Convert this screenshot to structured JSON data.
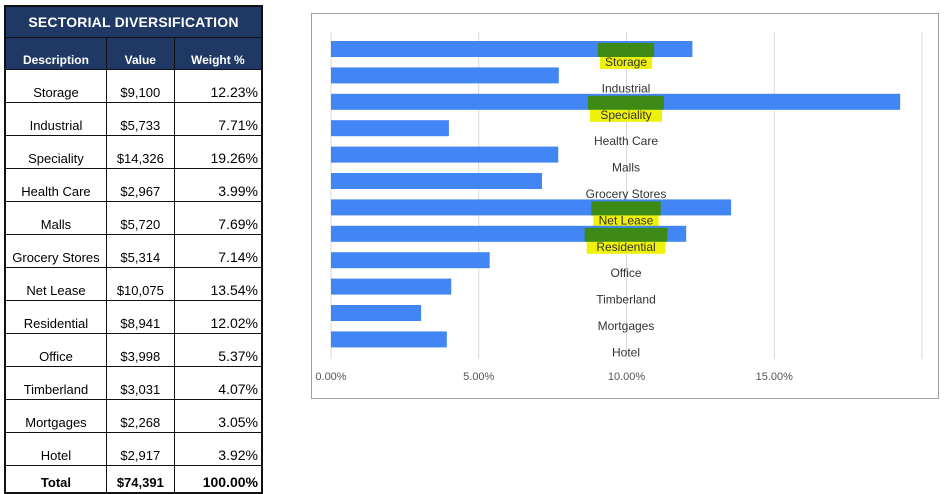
{
  "table": {
    "title": "SECTORIAL DIVERSIFICATION",
    "headers": [
      "Description",
      "Value",
      "Weight %"
    ],
    "rows": [
      {
        "desc": "Storage",
        "value": "$9,100",
        "weight": "12.23%"
      },
      {
        "desc": "Industrial",
        "value": "$5,733",
        "weight": "7.71%"
      },
      {
        "desc": "Speciality",
        "value": "$14,326",
        "weight": "19.26%"
      },
      {
        "desc": "Health Care",
        "value": "$2,967",
        "weight": "3.99%"
      },
      {
        "desc": "Malls",
        "value": "$5,720",
        "weight": "7.69%"
      },
      {
        "desc": "Grocery Stores",
        "value": "$5,314",
        "weight": "7.14%"
      },
      {
        "desc": "Net Lease",
        "value": "$10,075",
        "weight": "13.54%"
      },
      {
        "desc": "Residential",
        "value": "$8,941",
        "weight": "12.02%"
      },
      {
        "desc": "Office",
        "value": "$3,998",
        "weight": "5.37%"
      },
      {
        "desc": "Timberland",
        "value": "$3,031",
        "weight": "4.07%"
      },
      {
        "desc": "Mortgages",
        "value": "$2,268",
        "weight": "3.05%"
      },
      {
        "desc": "Hotel",
        "value": "$2,917",
        "weight": "3.92%"
      }
    ],
    "total": {
      "desc": "Total",
      "value": "$74,391",
      "weight": "100.00%"
    }
  },
  "chart_data": {
    "type": "bar",
    "orientation": "horizontal",
    "categories": [
      "Storage",
      "Industrial",
      "Speciality",
      "Health Care",
      "Malls",
      "Grocery Stores",
      "Net Lease",
      "Residential",
      "Office",
      "Timberland",
      "Mortgages",
      "Hotel"
    ],
    "values": [
      12.23,
      7.71,
      19.26,
      3.99,
      7.69,
      7.14,
      13.54,
      12.02,
      5.37,
      4.07,
      3.05,
      3.92
    ],
    "highlighted": [
      "Storage",
      "Speciality",
      "Net Lease",
      "Residential"
    ],
    "xlim": [
      0,
      20
    ],
    "xticks": [
      0,
      5,
      10,
      15,
      20
    ],
    "xtick_labels": [
      "0.00%",
      "5.00%",
      "10.00%",
      "15.00%",
      ""
    ],
    "grid": "vertical",
    "title": "",
    "xlabel": "",
    "ylabel": "",
    "colors": {
      "bar": "#4285f4",
      "highlight": "#eef20a",
      "highlight_dark": "#3d8b16",
      "grid": "#d9d9d9"
    }
  }
}
